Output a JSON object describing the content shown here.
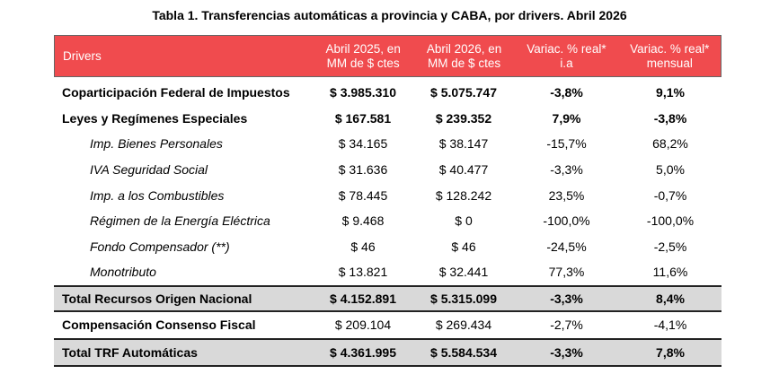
{
  "title": "Tabla 1. Transferencias automáticas a provincia y CABA, por drivers. Abril 2026",
  "headers": [
    "Drivers",
    "Abril 2025, en\nMM de $ ctes",
    "Abril 2026, en\nMM de $ ctes",
    "Variac. % real*\ni.a",
    "Variac. % real*\nmensual"
  ],
  "rows": [
    {
      "label": "Coparticipación Federal de Impuestos",
      "v2025": "$ 3.985.310",
      "v2026": "$ 5.075.747",
      "ia": "-3,8%",
      "mensual": "9,1%"
    },
    {
      "label": "Leyes y Regímenes Especiales",
      "v2025": "$ 167.581",
      "v2026": "$ 239.352",
      "ia": "7,9%",
      "mensual": "-3,8%"
    },
    {
      "label": "Imp. Bienes Personales",
      "v2025": "$ 34.165",
      "v2026": "$ 38.147",
      "ia": "-15,7%",
      "mensual": "68,2%"
    },
    {
      "label": "IVA Seguridad Social",
      "v2025": "$ 31.636",
      "v2026": "$ 40.477",
      "ia": "-3,3%",
      "mensual": "5,0%"
    },
    {
      "label": "Imp. a los Combustibles",
      "v2025": "$ 78.445",
      "v2026": "$ 128.242",
      "ia": "23,5%",
      "mensual": "-0,7%"
    },
    {
      "label": "Régimen de la Energía Eléctrica",
      "v2025": "$ 9.468",
      "v2026": "$ 0",
      "ia": "-100,0%",
      "mensual": "-100,0%"
    },
    {
      "label": "Fondo Compensador (**)",
      "v2025": "$ 46",
      "v2026": "$ 46",
      "ia": "-24,5%",
      "mensual": "-2,5%"
    },
    {
      "label": "Monotributo",
      "v2025": "$ 13.821",
      "v2026": "$ 32.441",
      "ia": "77,3%",
      "mensual": "11,6%"
    },
    {
      "label": "Total Recursos Origen Nacional",
      "v2025": "$ 4.152.891",
      "v2026": "$ 5.315.099",
      "ia": "-3,3%",
      "mensual": "8,4%"
    },
    {
      "label": "Compensación Consenso Fiscal",
      "v2025": "$ 209.104",
      "v2026": "$ 269.434",
      "ia": "-2,7%",
      "mensual": "-4,1%"
    },
    {
      "label": "Total TRF Automáticas",
      "v2025": "$ 4.361.995",
      "v2026": "$ 5.584.534",
      "ia": "-3,3%",
      "mensual": "7,8%"
    }
  ]
}
